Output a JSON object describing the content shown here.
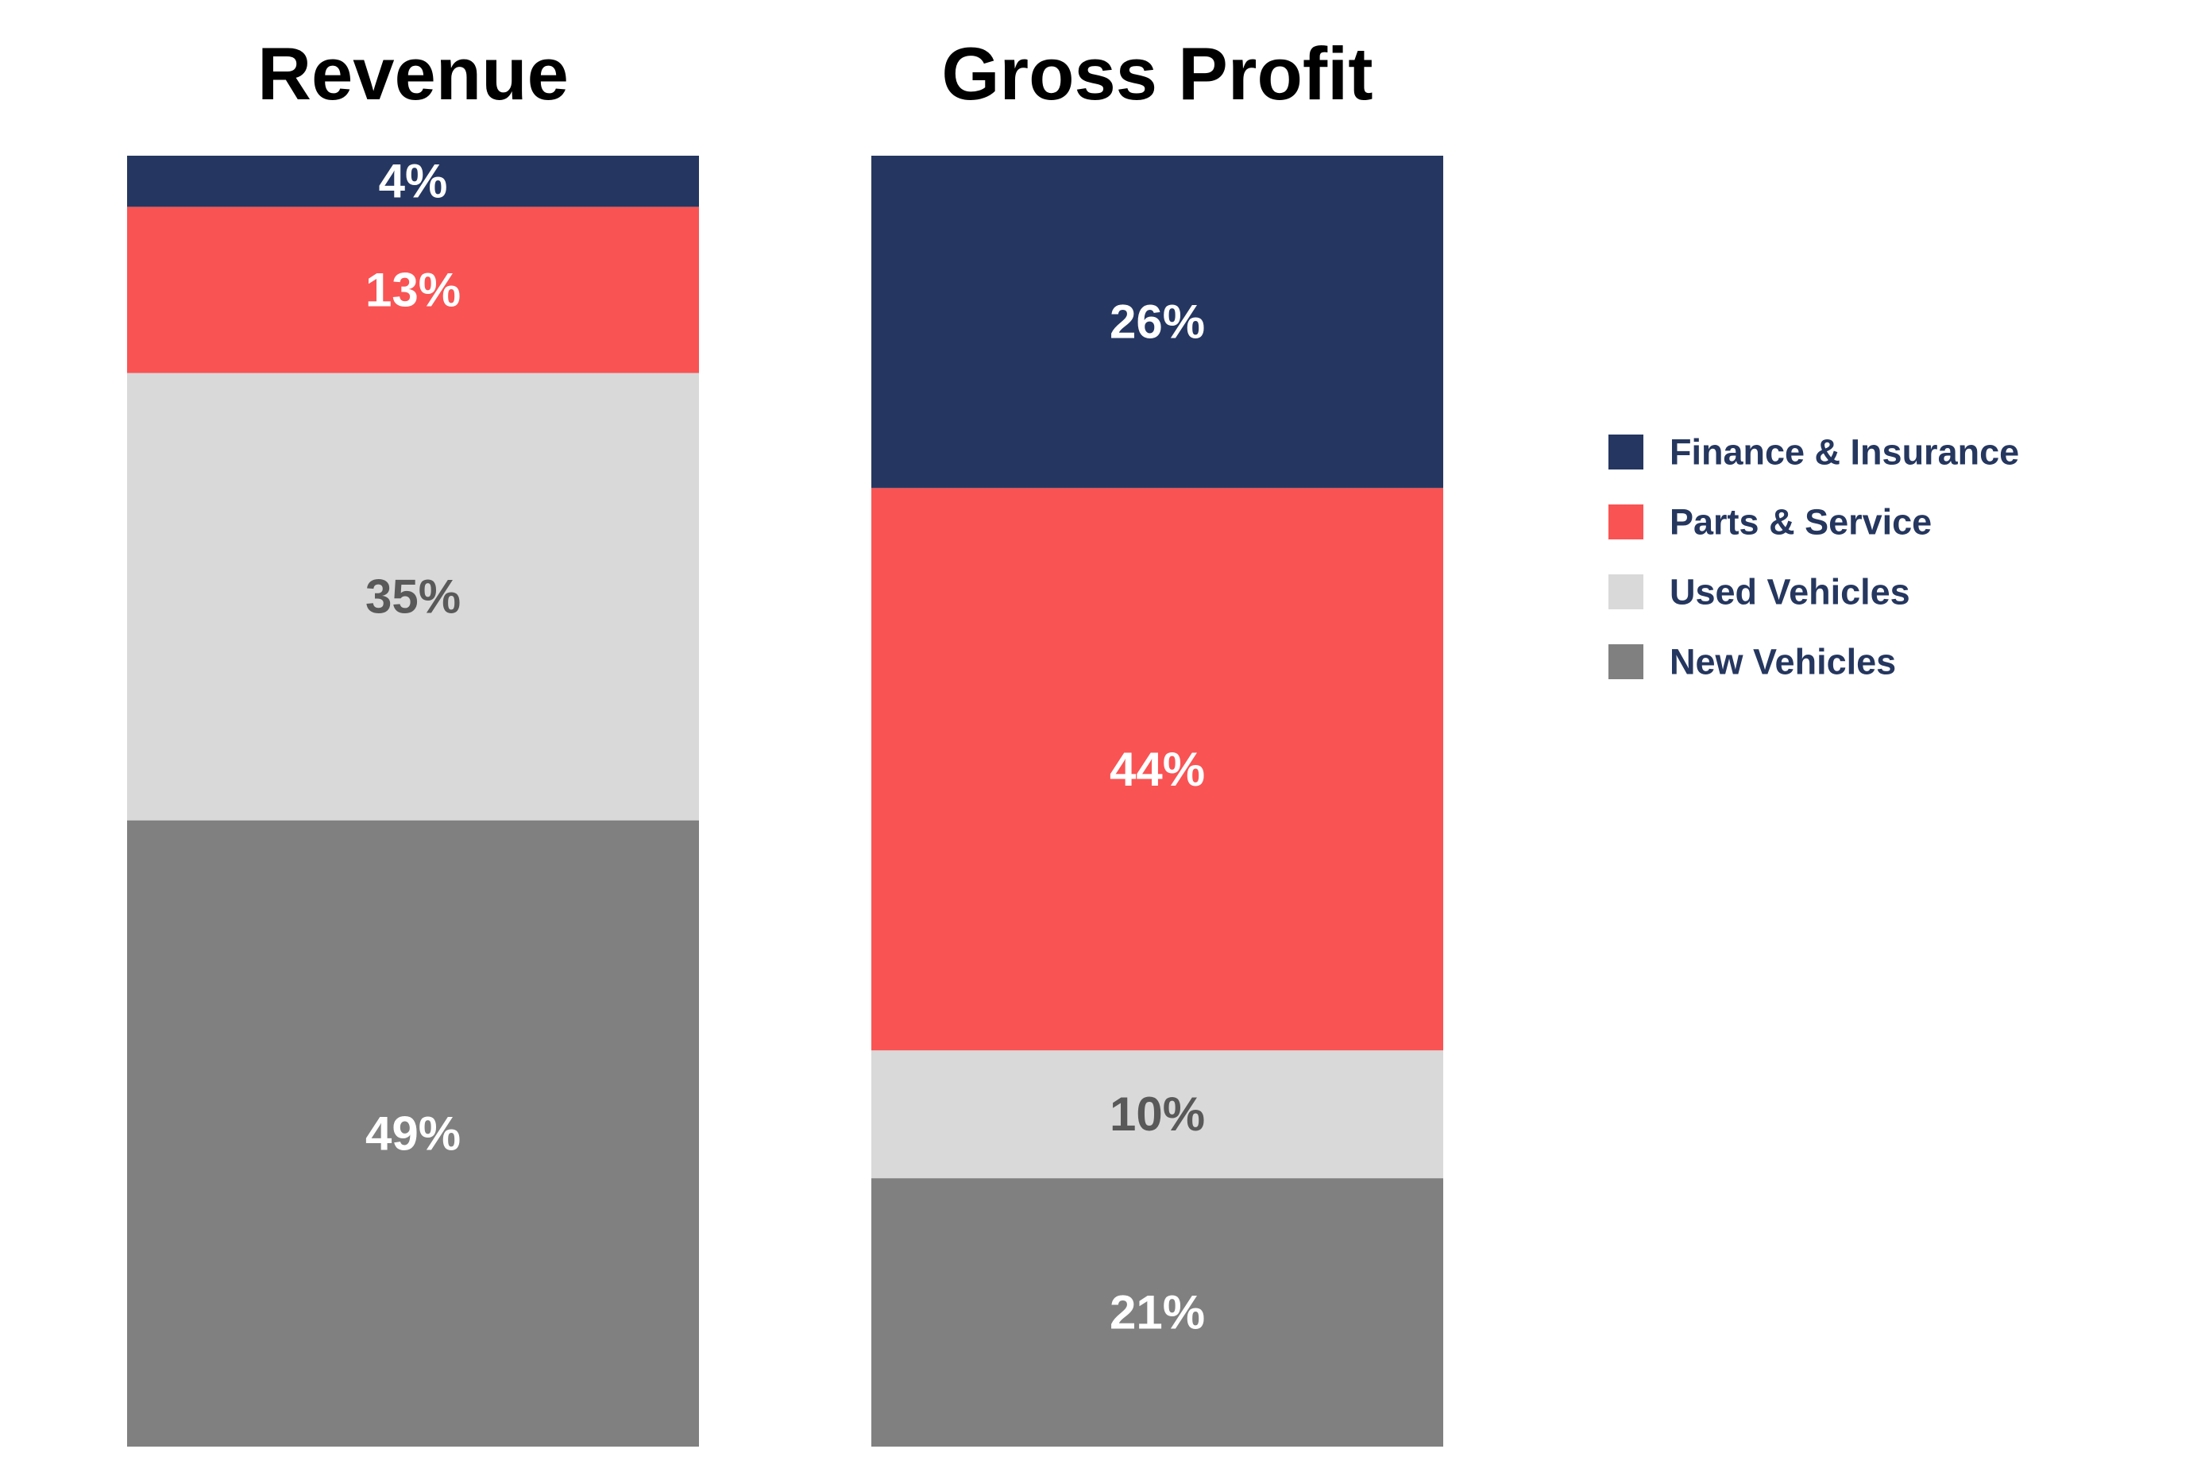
{
  "chart_data": {
    "type": "bar",
    "stacked": true,
    "normalized": true,
    "categories": [
      "Revenue",
      "Gross Profit"
    ],
    "series": [
      {
        "name": "New Vehicles",
        "values": [
          49,
          21
        ],
        "labels": [
          "49%",
          "21%"
        ],
        "color": "#808080",
        "label_color": "#ffffff"
      },
      {
        "name": "Used Vehicles",
        "values": [
          35,
          10
        ],
        "labels": [
          "35%",
          "10%"
        ],
        "color": "#d9d9d9",
        "label_color": "#595959"
      },
      {
        "name": "Parts & Service",
        "values": [
          13,
          44
        ],
        "labels": [
          "13%",
          "44%"
        ],
        "color": "#f95354",
        "label_color": "#ffffff"
      },
      {
        "name": "Finance & Insurance",
        "values": [
          4,
          26
        ],
        "labels": [
          "4%",
          "26%"
        ],
        "color": "#253761",
        "label_color": "#ffffff"
      }
    ],
    "legend": {
      "placement": "right",
      "order": [
        "Finance & Insurance",
        "Parts & Service",
        "Used Vehicles",
        "New Vehicles"
      ]
    },
    "ylim": [
      0,
      100
    ],
    "grid": false,
    "axes_visible": false
  }
}
